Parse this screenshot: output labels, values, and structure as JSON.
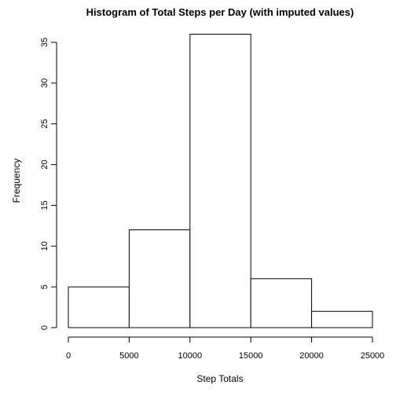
{
  "chart_data": {
    "type": "bar",
    "title": "Histogram of Total Steps per Day (with imputed values)",
    "xlabel": "Step Totals",
    "ylabel": "Frequency",
    "bins": [
      {
        "start": 0,
        "end": 5000,
        "count": 5
      },
      {
        "start": 5000,
        "end": 10000,
        "count": 12
      },
      {
        "start": 10000,
        "end": 15000,
        "count": 36
      },
      {
        "start": 15000,
        "end": 20000,
        "count": 6
      },
      {
        "start": 20000,
        "end": 25000,
        "count": 2
      }
    ],
    "xlim": [
      0,
      25000
    ],
    "ylim": [
      0,
      36
    ],
    "x_ticks": [
      0,
      5000,
      10000,
      15000,
      20000,
      25000
    ],
    "x_tick_labels": [
      "0",
      "5000",
      "10000",
      "15000",
      "20000",
      "25000"
    ],
    "y_ticks": [
      0,
      5,
      10,
      15,
      20,
      25,
      30,
      35
    ],
    "y_tick_labels": [
      "0",
      "5",
      "10",
      "15",
      "20",
      "25",
      "30",
      "35"
    ],
    "bar_fill": "#ffffff",
    "bar_stroke": "#000000",
    "grid": false,
    "legend": "none"
  }
}
